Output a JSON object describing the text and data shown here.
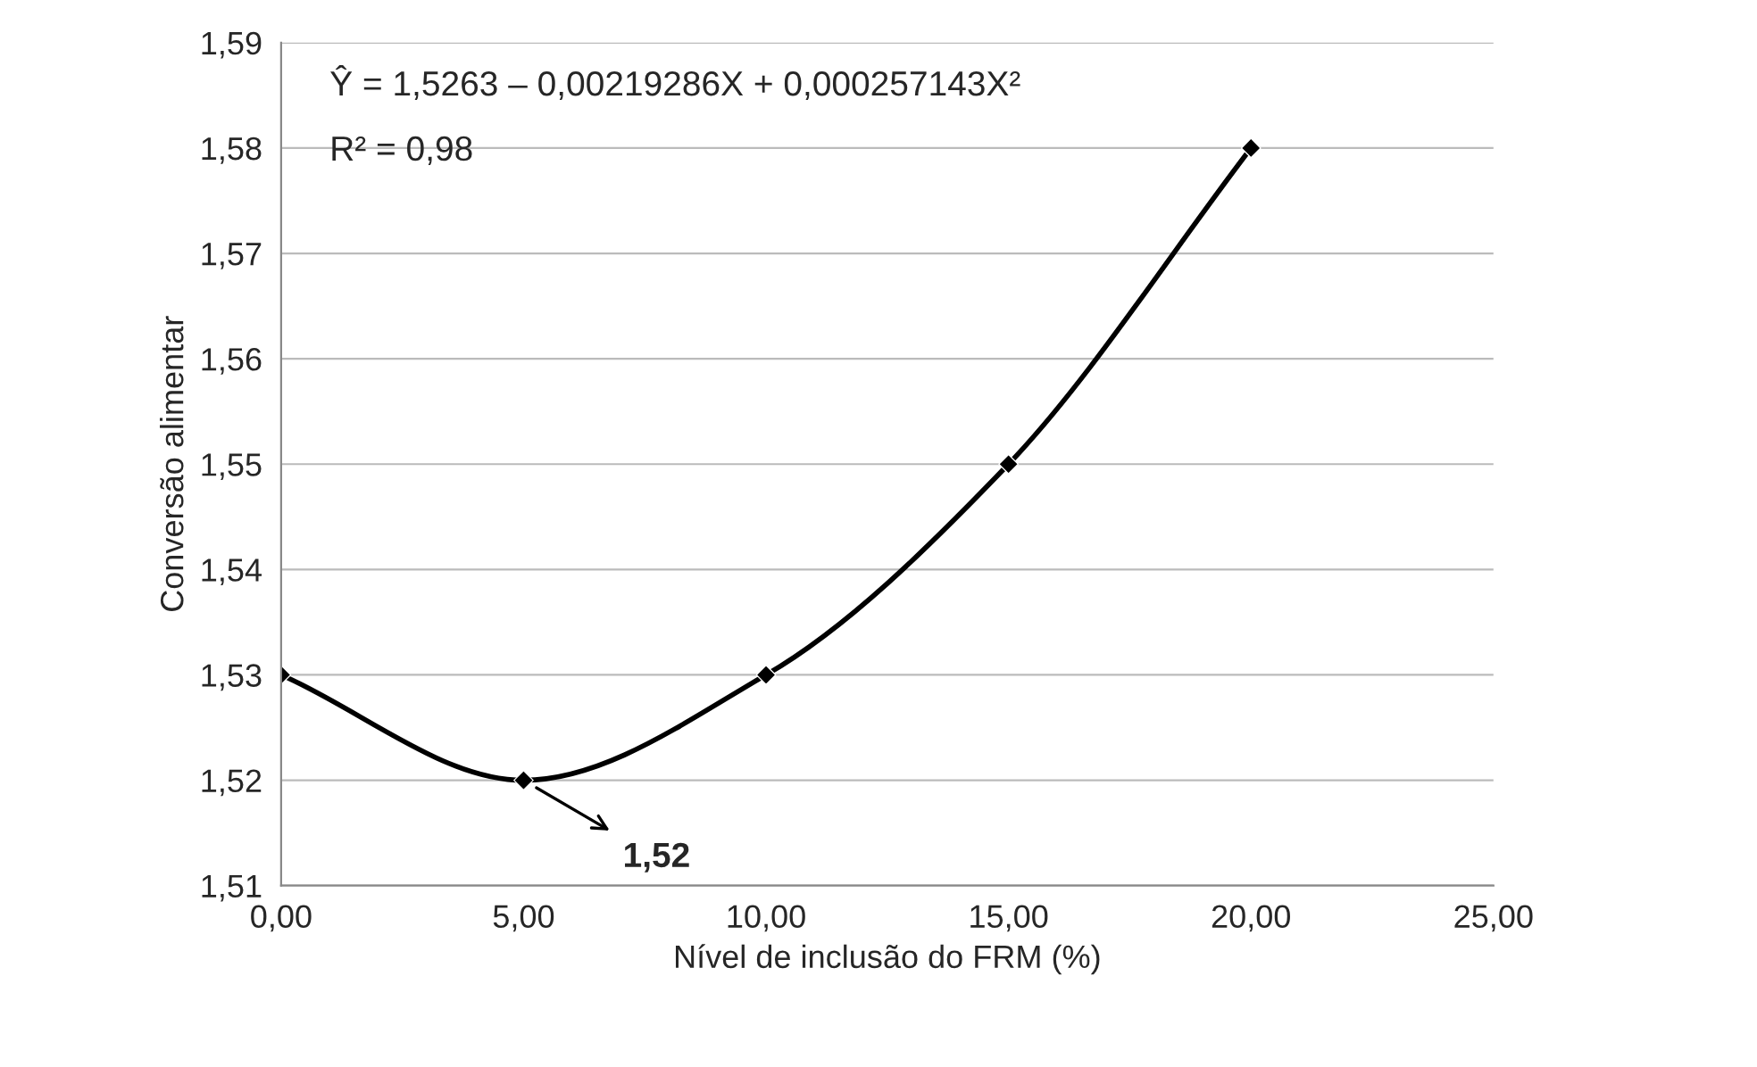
{
  "chart_data": {
    "type": "line",
    "xlabel": "Nível de inclusão do FRM (%)",
    "ylabel": "Conversão alimentar",
    "x": [
      0,
      5,
      10,
      15,
      20
    ],
    "series": [
      {
        "color": "#000000",
        "values": [
          1.53,
          1.52,
          1.53,
          1.55,
          1.58
        ]
      }
    ],
    "xlim": [
      0,
      25
    ],
    "xticks": [
      {
        "value": 0,
        "label": "0,00"
      },
      {
        "value": 5,
        "label": "5,00"
      },
      {
        "value": 10,
        "label": "10,00"
      },
      {
        "value": 15,
        "label": "15,00"
      },
      {
        "value": 20,
        "label": "20,00"
      },
      {
        "value": 25,
        "label": "25,00"
      }
    ],
    "ylim": [
      1.51,
      1.59
    ],
    "yticks": [
      {
        "value": 1.51,
        "label": "1,51"
      },
      {
        "value": 1.52,
        "label": "1,52"
      },
      {
        "value": 1.53,
        "label": "1,53"
      },
      {
        "value": 1.54,
        "label": "1,54"
      },
      {
        "value": 1.55,
        "label": "1,55"
      },
      {
        "value": 1.56,
        "label": "1,56"
      },
      {
        "value": 1.57,
        "label": "1,57"
      },
      {
        "value": 1.58,
        "label": "1,58"
      },
      {
        "value": 1.59,
        "label": "1,59"
      }
    ],
    "grid": "y",
    "marker": "diamond",
    "line_style": "solid",
    "legend": false,
    "annotations": [
      "Ŷ = 1,5263 – 0,00219286X + 0,000257143X²",
      "R² = 0,98",
      {
        "text": "1,52",
        "x": 5,
        "y": 1.52
      }
    ]
  }
}
